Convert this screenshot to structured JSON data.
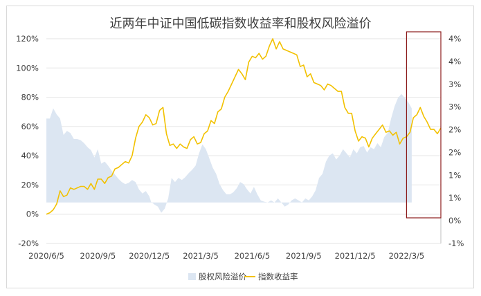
{
  "chart_data": {
    "type": "line",
    "title": "近两年中证中国低碳指数收益率和股权风险溢价",
    "xlabel": "",
    "ylabel": "",
    "x_tick_labels": [
      "2020/6/5",
      "2020/9/5",
      "2020/12/5",
      "2021/3/5",
      "2021/6/5",
      "2021/9/5",
      "2021/12/5",
      "2022/3/5"
    ],
    "x_range": [
      0,
      23
    ],
    "ylim_left": [
      -20,
      120
    ],
    "yticks_left": [
      "-20%",
      "0%",
      "20%",
      "40%",
      "60%",
      "80%",
      "100%",
      "120%"
    ],
    "ylim_right": [
      -1,
      4
    ],
    "yticks_right": [
      "-1%",
      "0%",
      "1%",
      "1%",
      "2%",
      "2%",
      "3%",
      "3%",
      "4%",
      "4%"
    ],
    "legend_position": "bottom",
    "highlight_box": {
      "x_from": 21.0,
      "x_to": 23.0,
      "color": "#8b1a1a"
    },
    "series": [
      {
        "name": "股权风险溢价",
        "kind": "area",
        "axis": "right",
        "color": "#dce6f2",
        "points": [
          [
            0.0,
            2.05
          ],
          [
            0.2,
            2.05
          ],
          [
            0.4,
            2.3
          ],
          [
            0.6,
            2.15
          ],
          [
            0.8,
            2.05
          ],
          [
            1.0,
            1.65
          ],
          [
            1.2,
            1.75
          ],
          [
            1.4,
            1.7
          ],
          [
            1.6,
            1.55
          ],
          [
            1.8,
            1.55
          ],
          [
            2.0,
            1.52
          ],
          [
            2.2,
            1.45
          ],
          [
            2.4,
            1.35
          ],
          [
            2.6,
            1.28
          ],
          [
            2.8,
            1.1
          ],
          [
            3.0,
            1.3
          ],
          [
            3.2,
            0.95
          ],
          [
            3.4,
            1.0
          ],
          [
            3.6,
            0.9
          ],
          [
            3.8,
            0.78
          ],
          [
            4.0,
            0.68
          ],
          [
            4.2,
            0.58
          ],
          [
            4.4,
            0.5
          ],
          [
            4.6,
            0.45
          ],
          [
            4.8,
            0.48
          ],
          [
            5.0,
            0.55
          ],
          [
            5.2,
            0.5
          ],
          [
            5.4,
            0.32
          ],
          [
            5.6,
            0.22
          ],
          [
            5.8,
            0.28
          ],
          [
            6.0,
            0.15
          ],
          [
            6.1,
            0.02
          ],
          [
            6.3,
            -0.05
          ],
          [
            6.5,
            -0.1
          ],
          [
            6.7,
            -0.25
          ],
          [
            6.9,
            -0.15
          ],
          [
            7.1,
            0.1
          ],
          [
            7.3,
            0.6
          ],
          [
            7.5,
            0.5
          ],
          [
            7.7,
            0.6
          ],
          [
            7.9,
            0.55
          ],
          [
            8.1,
            0.62
          ],
          [
            8.3,
            0.72
          ],
          [
            8.5,
            0.8
          ],
          [
            8.7,
            0.9
          ],
          [
            8.9,
            1.2
          ],
          [
            9.1,
            1.42
          ],
          [
            9.3,
            1.3
          ],
          [
            9.5,
            1.08
          ],
          [
            9.7,
            0.85
          ],
          [
            9.9,
            0.7
          ],
          [
            10.1,
            0.45
          ],
          [
            10.3,
            0.3
          ],
          [
            10.5,
            0.2
          ],
          [
            10.7,
            0.2
          ],
          [
            10.9,
            0.25
          ],
          [
            11.1,
            0.35
          ],
          [
            11.3,
            0.5
          ],
          [
            11.5,
            0.45
          ],
          [
            11.7,
            0.32
          ],
          [
            11.9,
            0.22
          ],
          [
            12.1,
            0.38
          ],
          [
            12.3,
            0.2
          ],
          [
            12.5,
            0.05
          ],
          [
            12.7,
            0.02
          ],
          [
            12.9,
            0.0
          ],
          [
            13.1,
            0.05
          ],
          [
            13.3,
            0.0
          ],
          [
            13.5,
            0.1
          ],
          [
            13.7,
            0.0
          ],
          [
            13.9,
            -0.1
          ],
          [
            14.1,
            -0.05
          ],
          [
            14.3,
            0.05
          ],
          [
            14.5,
            0.1
          ],
          [
            14.7,
            0.05
          ],
          [
            14.9,
            0.0
          ],
          [
            15.1,
            0.1
          ],
          [
            15.3,
            0.05
          ],
          [
            15.5,
            0.15
          ],
          [
            15.7,
            0.3
          ],
          [
            15.9,
            0.6
          ],
          [
            16.1,
            0.7
          ],
          [
            16.3,
            1.0
          ],
          [
            16.5,
            1.15
          ],
          [
            16.7,
            1.2
          ],
          [
            16.9,
            1.05
          ],
          [
            17.1,
            1.15
          ],
          [
            17.3,
            1.3
          ],
          [
            17.5,
            1.2
          ],
          [
            17.7,
            1.1
          ],
          [
            17.9,
            1.3
          ],
          [
            18.1,
            1.2
          ],
          [
            18.3,
            1.35
          ],
          [
            18.5,
            1.38
          ],
          [
            18.7,
            1.22
          ],
          [
            18.9,
            1.35
          ],
          [
            19.1,
            1.3
          ],
          [
            19.3,
            1.45
          ],
          [
            19.5,
            1.35
          ],
          [
            19.7,
            1.6
          ],
          [
            19.9,
            1.7
          ],
          [
            20.1,
            2.05
          ],
          [
            20.3,
            2.35
          ],
          [
            20.5,
            2.55
          ],
          [
            20.7,
            2.65
          ],
          [
            20.9,
            2.55
          ],
          [
            21.1,
            2.45
          ],
          [
            21.3,
            2.3
          ]
        ]
      },
      {
        "name": "指数收益率",
        "kind": "line",
        "axis": "left",
        "color": "#f2c100",
        "points": [
          [
            0.0,
            0.0
          ],
          [
            0.2,
            1.0
          ],
          [
            0.4,
            3.0
          ],
          [
            0.6,
            7.0
          ],
          [
            0.8,
            16.0
          ],
          [
            1.0,
            12.0
          ],
          [
            1.2,
            13.0
          ],
          [
            1.4,
            18.0
          ],
          [
            1.6,
            17.0
          ],
          [
            1.8,
            18.0
          ],
          [
            2.0,
            19.0
          ],
          [
            2.2,
            19.0
          ],
          [
            2.4,
            17.0
          ],
          [
            2.6,
            21.0
          ],
          [
            2.8,
            17.0
          ],
          [
            3.0,
            24.0
          ],
          [
            3.2,
            24.0
          ],
          [
            3.4,
            21.0
          ],
          [
            3.6,
            25.0
          ],
          [
            3.8,
            26.0
          ],
          [
            4.0,
            31.0
          ],
          [
            4.2,
            32.0
          ],
          [
            4.4,
            34.0
          ],
          [
            4.6,
            36.0
          ],
          [
            4.8,
            35.0
          ],
          [
            5.0,
            40.0
          ],
          [
            5.2,
            52.0
          ],
          [
            5.4,
            60.0
          ],
          [
            5.6,
            63.0
          ],
          [
            5.8,
            68.0
          ],
          [
            6.0,
            66.0
          ],
          [
            6.2,
            61.0
          ],
          [
            6.4,
            62.0
          ],
          [
            6.6,
            71.0
          ],
          [
            6.8,
            73.0
          ],
          [
            7.0,
            55.0
          ],
          [
            7.2,
            47.0
          ],
          [
            7.4,
            48.0
          ],
          [
            7.6,
            45.0
          ],
          [
            7.8,
            48.0
          ],
          [
            8.0,
            46.0
          ],
          [
            8.2,
            45.0
          ],
          [
            8.4,
            51.0
          ],
          [
            8.6,
            53.0
          ],
          [
            8.8,
            48.0
          ],
          [
            9.0,
            49.0
          ],
          [
            9.2,
            55.0
          ],
          [
            9.4,
            57.0
          ],
          [
            9.6,
            64.0
          ],
          [
            9.8,
            62.0
          ],
          [
            10.0,
            70.0
          ],
          [
            10.2,
            72.0
          ],
          [
            10.4,
            80.0
          ],
          [
            10.6,
            84.0
          ],
          [
            10.8,
            89.0
          ],
          [
            11.0,
            94.0
          ],
          [
            11.2,
            99.0
          ],
          [
            11.4,
            96.0
          ],
          [
            11.6,
            92.0
          ],
          [
            11.8,
            104.0
          ],
          [
            12.0,
            108.0
          ],
          [
            12.2,
            107.0
          ],
          [
            12.4,
            110.0
          ],
          [
            12.6,
            106.0
          ],
          [
            12.8,
            108.0
          ],
          [
            13.0,
            115.0
          ],
          [
            13.2,
            120.0
          ],
          [
            13.4,
            113.0
          ],
          [
            13.6,
            118.0
          ],
          [
            13.8,
            113.0
          ],
          [
            14.0,
            112.0
          ],
          [
            14.2,
            111.0
          ],
          [
            14.4,
            110.0
          ],
          [
            14.6,
            109.0
          ],
          [
            14.8,
            101.0
          ],
          [
            15.0,
            102.0
          ],
          [
            15.2,
            94.0
          ],
          [
            15.4,
            96.0
          ],
          [
            15.6,
            90.0
          ],
          [
            15.8,
            89.0
          ],
          [
            16.0,
            88.0
          ],
          [
            16.2,
            85.0
          ],
          [
            16.4,
            89.0
          ],
          [
            16.6,
            88.0
          ],
          [
            16.8,
            86.0
          ],
          [
            17.0,
            84.0
          ],
          [
            17.2,
            84.0
          ],
          [
            17.4,
            73.0
          ],
          [
            17.6,
            69.0
          ],
          [
            17.8,
            69.0
          ],
          [
            18.0,
            57.0
          ],
          [
            18.2,
            50.0
          ],
          [
            18.4,
            53.0
          ],
          [
            18.6,
            52.0
          ],
          [
            18.8,
            46.0
          ],
          [
            19.0,
            52.0
          ],
          [
            19.2,
            55.0
          ],
          [
            19.4,
            58.0
          ],
          [
            19.6,
            61.0
          ],
          [
            19.8,
            56.0
          ],
          [
            20.0,
            57.0
          ],
          [
            20.2,
            54.0
          ],
          [
            20.4,
            56.0
          ],
          [
            20.6,
            48.0
          ],
          [
            20.8,
            52.0
          ],
          [
            21.0,
            53.0
          ],
          [
            21.2,
            56.0
          ],
          [
            21.4,
            66.0
          ],
          [
            21.6,
            68.0
          ],
          [
            21.8,
            73.0
          ],
          [
            22.0,
            67.0
          ],
          [
            22.2,
            63.0
          ],
          [
            22.4,
            58.0
          ],
          [
            22.6,
            58.0
          ],
          [
            22.8,
            55.0
          ],
          [
            23.0,
            59.0
          ]
        ]
      }
    ]
  }
}
